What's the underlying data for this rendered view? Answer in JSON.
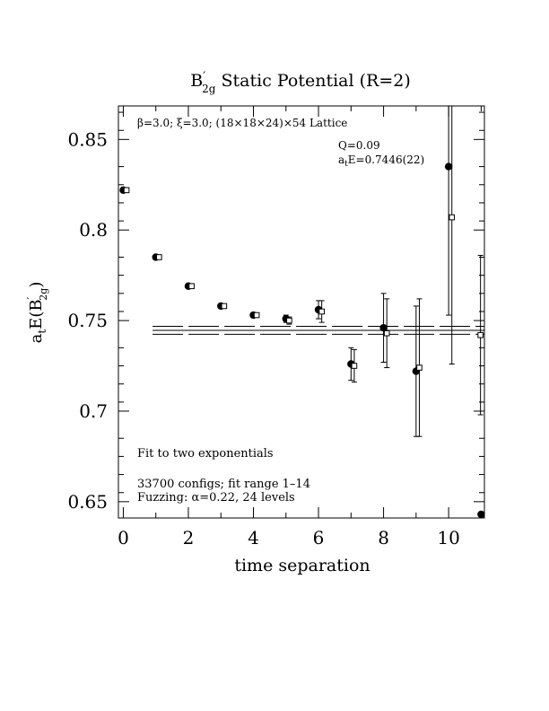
{
  "chart_data": {
    "type": "scatter",
    "title_main": "B",
    "title_prime": "′",
    "title_sub": "2g",
    "title_rest": " Static Potential (R=2)",
    "params_beta": "β=3.0; ",
    "params_xi": "ξ=3.0; ",
    "params_lattice": "(18×18×24)×54 Lattice",
    "q_label": "Q=0.09",
    "energy_a": "a",
    "energy_t": "t",
    "energy_val": "E=0.7446(22)",
    "note_fit": "Fit to two exponentials",
    "note_configs": "33700 configs; fit range 1–14",
    "note_fuzz": "Fuzzing: α=0.22, 24 levels",
    "xlabel": "time separation",
    "ylabel_a": "a",
    "ylabel_t": "t",
    "ylabel_E": "E(B",
    "ylabel_prime": "′",
    "ylabel_sub": "2g",
    "ylabel_close": ")",
    "xlim": [
      -0.15,
      11.1
    ],
    "ylim": [
      0.641,
      0.8685
    ],
    "x_ticks": [
      0,
      2,
      4,
      6,
      8,
      10
    ],
    "x_tick_labels": [
      "0",
      "2",
      "4",
      "6",
      "8",
      "10"
    ],
    "y_ticks": [
      0.65,
      0.7,
      0.75,
      0.8,
      0.85
    ],
    "y_tick_labels": [
      "0.65",
      "0.7",
      "0.75",
      "0.8",
      "0.85"
    ],
    "fit": {
      "value": 0.7446,
      "error": 0.0022,
      "x_range": [
        0.9,
        11.1
      ]
    },
    "series": [
      {
        "marker": "filled-circle",
        "points": [
          {
            "x": 0,
            "y": 0.822,
            "err": null
          },
          {
            "x": 1,
            "y": 0.785,
            "err": null
          },
          {
            "x": 2,
            "y": 0.769,
            "err": null
          },
          {
            "x": 3,
            "y": 0.758,
            "err": null
          },
          {
            "x": 4,
            "y": 0.753,
            "err": null
          },
          {
            "x": 5,
            "y": 0.751,
            "err": 0.002
          },
          {
            "x": 6,
            "y": 0.756,
            "err": 0.005
          },
          {
            "x": 7,
            "y": 0.726,
            "err": 0.009
          },
          {
            "x": 8,
            "y": 0.746,
            "err": 0.019
          },
          {
            "x": 9,
            "y": 0.722,
            "err": 0.036
          },
          {
            "x": 10,
            "y": 0.835,
            "err": 0.082
          },
          {
            "x": 11,
            "y": 0.643,
            "err": null
          }
        ]
      },
      {
        "marker": "open-square",
        "points": [
          {
            "x": 0.1,
            "y": 0.822,
            "err": null
          },
          {
            "x": 1.1,
            "y": 0.785,
            "err": null
          },
          {
            "x": 2.1,
            "y": 0.769,
            "err": null
          },
          {
            "x": 3.1,
            "y": 0.758,
            "err": null
          },
          {
            "x": 4.1,
            "y": 0.753,
            "err": null
          },
          {
            "x": 5.1,
            "y": 0.75,
            "err": 0.002
          },
          {
            "x": 6.1,
            "y": 0.755,
            "err": 0.006
          },
          {
            "x": 7.1,
            "y": 0.725,
            "err": 0.009
          },
          {
            "x": 8.1,
            "y": 0.743,
            "err": 0.019
          },
          {
            "x": 9.1,
            "y": 0.724,
            "err": 0.038
          },
          {
            "x": 10.1,
            "y": 0.807,
            "err": 0.081
          },
          {
            "x": 10.98,
            "y": 0.742,
            "err": 0.044
          }
        ]
      }
    ]
  }
}
